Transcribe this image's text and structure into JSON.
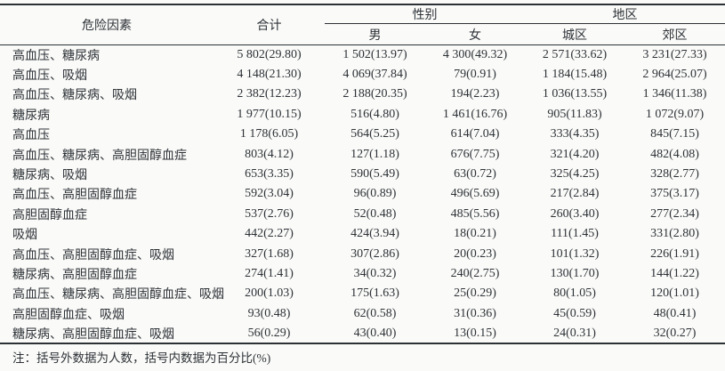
{
  "table": {
    "headers": {
      "factor": "危险因素",
      "total": "合计",
      "gender_group": "性别",
      "region_group": "地区",
      "male": "男",
      "female": "女",
      "urban": "城区",
      "suburban": "郊区"
    },
    "rows": [
      [
        "高血压、糖尿病",
        "5 802(29.80)",
        "1 502(13.97)",
        "4 300(49.32)",
        "2 571(33.62)",
        "3 231(27.33)"
      ],
      [
        "高血压、吸烟",
        "4 148(21.30)",
        "4 069(37.84)",
        "79(0.91)",
        "1 184(15.48)",
        "2 964(25.07)"
      ],
      [
        "高血压、糖尿病、吸烟",
        "2 382(12.23)",
        "2 188(20.35)",
        "194(2.23)",
        "1 036(13.55)",
        "1 346(11.38)"
      ],
      [
        "糖尿病",
        "1 977(10.15)",
        "516(4.80)",
        "1 461(16.76)",
        "905(11.83)",
        "1 072(9.07)"
      ],
      [
        "高血压",
        "1 178(6.05)",
        "564(5.25)",
        "614(7.04)",
        "333(4.35)",
        "845(7.15)"
      ],
      [
        "高血压、糖尿病、高胆固醇血症",
        "803(4.12)",
        "127(1.18)",
        "676(7.75)",
        "321(4.20)",
        "482(4.08)"
      ],
      [
        "糖尿病、吸烟",
        "653(3.35)",
        "590(5.49)",
        "63(0.72)",
        "325(4.25)",
        "328(2.77)"
      ],
      [
        "高血压、高胆固醇血症",
        "592(3.04)",
        "96(0.89)",
        "496(5.69)",
        "217(2.84)",
        "375(3.17)"
      ],
      [
        "高胆固醇血症",
        "537(2.76)",
        "52(0.48)",
        "485(5.56)",
        "260(3.40)",
        "277(2.34)"
      ],
      [
        "吸烟",
        "442(2.27)",
        "424(3.94)",
        "18(0.21)",
        "111(1.45)",
        "331(2.80)"
      ],
      [
        "高血压、高胆固醇血症、吸烟",
        "327(1.68)",
        "307(2.86)",
        "20(0.23)",
        "101(1.32)",
        "226(1.91)"
      ],
      [
        "糖尿病、高胆固醇血症",
        "274(1.41)",
        "34(0.32)",
        "240(2.75)",
        "130(1.70)",
        "144(1.22)"
      ],
      [
        "高血压、糖尿病、高胆固醇血症、吸烟",
        "200(1.03)",
        "175(1.63)",
        "25(0.29)",
        "80(1.05)",
        "120(1.01)"
      ],
      [
        "高胆固醇血症、吸烟",
        "93(0.48)",
        "62(0.58)",
        "31(0.36)",
        "45(0.59)",
        "48(0.41)"
      ],
      [
        "糖尿病、高胆固醇血症、吸烟",
        "56(0.29)",
        "43(0.40)",
        "13(0.15)",
        "24(0.31)",
        "32(0.27)"
      ]
    ]
  },
  "footnote": "注：括号外数据为人数，括号内数据为百分比(%)",
  "colors": {
    "text": "#2d3237",
    "rule": "#2c3136",
    "background": "#fafaf8"
  }
}
